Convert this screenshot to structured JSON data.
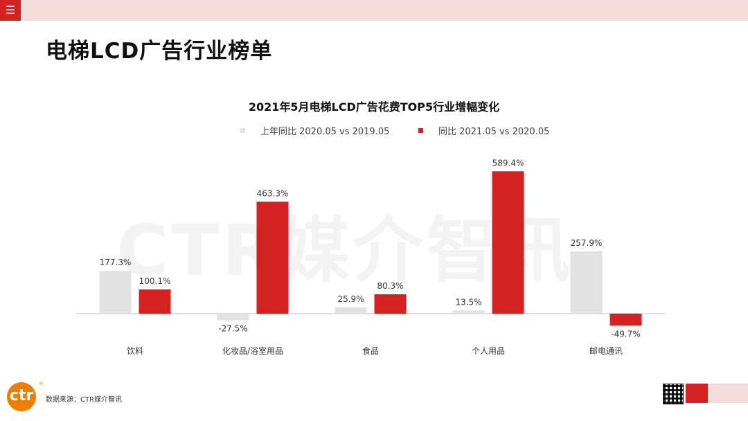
{
  "header": {
    "menu_icon": "hamburger-icon"
  },
  "page_title": "电梯LCD广告行业榜单",
  "watermark": "CTR媒介智讯",
  "footer": {
    "source_text": "数据来源：CTR媒介智讯",
    "logo_text": "ctr",
    "logo_mark": "®"
  },
  "colors": {
    "accent": "#d42121",
    "light_bar": "#e2e2e2",
    "logo": "#ef7d00"
  },
  "chart_data": {
    "type": "bar",
    "title": "2021年5月电梯LCD广告花费TOP5行业增幅变化",
    "categories": [
      "饮料",
      "化妆品/浴室用品",
      "食品",
      "个人用品",
      "邮电通讯"
    ],
    "series": [
      {
        "name": "上年同比 2020.05 vs 2019.05",
        "values": [
          177.3,
          -27.5,
          25.9,
          13.5,
          257.9
        ],
        "labels": [
          "177.3%",
          "-27.5%",
          "25.9%",
          "13.5%",
          "257.9%"
        ],
        "color": "#e2e2e2"
      },
      {
        "name": "同比 2021.05 vs 2020.05",
        "values": [
          100.1,
          463.3,
          80.3,
          589.4,
          -49.7
        ],
        "labels": [
          "100.1%",
          "463.3%",
          "80.3%",
          "589.4%",
          "-49.7%"
        ],
        "color": "#d42121"
      }
    ],
    "legend_position": "top-center",
    "grid": false
  }
}
